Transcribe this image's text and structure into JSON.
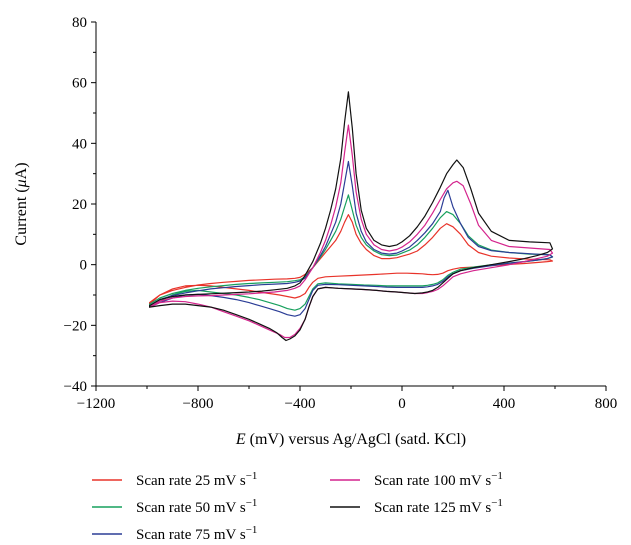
{
  "chart_data": {
    "type": "line",
    "title": "",
    "xlabel_italic": "E",
    "xlabel_rest": " (mV) versus Ag/AgCl (satd. KCl)",
    "ylabel_pre": "Current (",
    "ylabel_italic": "μ",
    "ylabel_post": "A)",
    "xlim": [
      -1200,
      800
    ],
    "ylim": [
      -40,
      80
    ],
    "x_ticks": [
      -1200,
      -800,
      -400,
      0,
      400,
      800
    ],
    "x_tick_labels": [
      "−1200",
      "−800",
      "−400",
      "0",
      "400",
      "800"
    ],
    "y_ticks": [
      -40,
      -20,
      0,
      20,
      40,
      60,
      80
    ],
    "y_tick_labels": [
      "−40",
      "−20",
      "0",
      "20",
      "40",
      "60",
      "80"
    ],
    "series": [
      {
        "name": "Scan rate 25 mV s−1",
        "color": "#e8332a",
        "x": [
          -990,
          -950,
          -900,
          -850,
          -800,
          -750,
          -700,
          -650,
          -600,
          -550,
          -500,
          -450,
          -420,
          -400,
          -380,
          -350,
          -320,
          -300,
          -280,
          -260,
          -240,
          -225,
          -210,
          -195,
          -180,
          -160,
          -140,
          -110,
          -80,
          -50,
          -20,
          0,
          30,
          60,
          90,
          120,
          150,
          175,
          200,
          230,
          260,
          300,
          350,
          420,
          500,
          580,
          590,
          570,
          530,
          480,
          420,
          350,
          280,
          230,
          200,
          180,
          160,
          140,
          120,
          100,
          80,
          50,
          20,
          -20,
          -60,
          -100,
          -150,
          -200,
          -250,
          -300,
          -330,
          -350,
          -365,
          -380,
          -400,
          -420,
          -450,
          -480,
          -520,
          -560,
          -600,
          -650,
          -700,
          -750,
          -800,
          -850,
          -900,
          -950,
          -990
        ],
        "y": [
          -12.5,
          -10,
          -8.5,
          -7.5,
          -6.7,
          -6.2,
          -5.8,
          -5.5,
          -5.2,
          -5,
          -4.8,
          -4.7,
          -4.5,
          -4.2,
          -3.2,
          -1,
          2,
          4,
          6,
          8,
          11,
          14,
          16.5,
          14,
          10,
          7,
          5,
          3,
          2,
          2,
          2.3,
          2.8,
          3.5,
          4.5,
          6.5,
          9,
          12,
          13.5,
          12.5,
          10,
          6.5,
          4,
          2.8,
          2.2,
          1.8,
          1.6,
          1.2,
          1,
          0.7,
          0.4,
          0.1,
          -0.3,
          -0.8,
          -1,
          -1.5,
          -2,
          -2.8,
          -3.2,
          -3.3,
          -3.2,
          -3,
          -2.9,
          -2.8,
          -2.8,
          -3,
          -3.2,
          -3.4,
          -3.6,
          -3.8,
          -4,
          -4.5,
          -5.8,
          -7.5,
          -9.5,
          -10.5,
          -11,
          -10.5,
          -10,
          -9.5,
          -9,
          -8.5,
          -8,
          -7.5,
          -7,
          -6.8,
          -7,
          -8,
          -10,
          -13
        ]
      },
      {
        "name": "Scan rate 50 mV s−1",
        "color": "#17a05d",
        "x": [
          -990,
          -950,
          -900,
          -850,
          -800,
          -750,
          -700,
          -650,
          -600,
          -550,
          -500,
          -450,
          -420,
          -400,
          -380,
          -350,
          -320,
          -300,
          -280,
          -260,
          -240,
          -225,
          -210,
          -195,
          -180,
          -160,
          -140,
          -110,
          -80,
          -50,
          -20,
          0,
          30,
          60,
          90,
          120,
          150,
          175,
          200,
          230,
          260,
          300,
          350,
          420,
          500,
          580,
          590,
          570,
          530,
          480,
          420,
          350,
          280,
          230,
          200,
          180,
          160,
          140,
          120,
          100,
          80,
          50,
          20,
          -20,
          -60,
          -100,
          -150,
          -200,
          -250,
          -300,
          -330,
          -350,
          -365,
          -380,
          -400,
          -420,
          -450,
          -480,
          -520,
          -560,
          -600,
          -650,
          -700,
          -750,
          -800,
          -850,
          -900,
          -950,
          -990
        ],
        "y": [
          -13,
          -11,
          -9.5,
          -8.5,
          -7.8,
          -7.3,
          -6.9,
          -6.5,
          -6.2,
          -6,
          -5.8,
          -5.6,
          -5.3,
          -5,
          -4,
          -1,
          2.5,
          5,
          8,
          11,
          15,
          19,
          23,
          18,
          13,
          9,
          6.5,
          4.5,
          3.3,
          3,
          3.2,
          3.8,
          4.8,
          6.5,
          9,
          12,
          15.5,
          17.5,
          16.5,
          13.5,
          9.5,
          6.5,
          4.8,
          4,
          3.5,
          3.3,
          2.5,
          2,
          1.5,
          1,
          0.5,
          0,
          -0.8,
          -1.5,
          -2.5,
          -3.5,
          -5,
          -6,
          -6.5,
          -6.8,
          -7,
          -7,
          -7,
          -7,
          -7,
          -6.8,
          -6.7,
          -6.5,
          -6.3,
          -6,
          -6.3,
          -8,
          -10.5,
          -13,
          -14.5,
          -15,
          -14.5,
          -13.5,
          -12.5,
          -11.5,
          -10.8,
          -10,
          -9.5,
          -9,
          -8.5,
          -8.8,
          -10,
          -12,
          -14
        ]
      },
      {
        "name": "Scan rate 75 mV s−1",
        "color": "#2b3d96",
        "x": [
          -990,
          -950,
          -900,
          -850,
          -800,
          -750,
          -700,
          -650,
          -600,
          -550,
          -500,
          -450,
          -420,
          -400,
          -380,
          -350,
          -320,
          -300,
          -280,
          -260,
          -240,
          -225,
          -210,
          -195,
          -180,
          -160,
          -140,
          -110,
          -80,
          -50,
          -20,
          0,
          30,
          60,
          90,
          120,
          150,
          165,
          180,
          200,
          230,
          260,
          300,
          350,
          420,
          500,
          580,
          590,
          570,
          530,
          480,
          420,
          350,
          280,
          230,
          200,
          180,
          160,
          140,
          120,
          100,
          80,
          50,
          20,
          -20,
          -60,
          -100,
          -150,
          -200,
          -250,
          -300,
          -330,
          -350,
          -365,
          -380,
          -400,
          -420,
          -450,
          -480,
          -520,
          -560,
          -600,
          -650,
          -700,
          -750,
          -800,
          -850,
          -900,
          -950,
          -990
        ],
        "y": [
          -13.5,
          -11.5,
          -10.2,
          -9.3,
          -8.6,
          -8,
          -7.6,
          -7.2,
          -6.9,
          -6.6,
          -6.4,
          -6.2,
          -5.8,
          -5.4,
          -4.4,
          -1,
          3,
          6,
          10,
          14,
          20,
          27,
          34,
          26,
          17,
          11,
          7.5,
          5,
          3.8,
          3.5,
          3.8,
          4.5,
          5.8,
          8,
          10.5,
          13.5,
          17.5,
          22,
          24.5,
          19,
          13.5,
          9,
          6,
          4.6,
          4,
          3.6,
          3.2,
          2.6,
          2,
          1.5,
          1,
          0.5,
          -0.3,
          -1.2,
          -2,
          -3,
          -4,
          -5.5,
          -6.5,
          -7,
          -7.3,
          -7.5,
          -7.5,
          -7.5,
          -7.5,
          -7.4,
          -7.2,
          -7,
          -6.8,
          -6.6,
          -6.5,
          -6.8,
          -8.5,
          -11.5,
          -14.5,
          -16.5,
          -17,
          -16.5,
          -15.5,
          -14.5,
          -13.5,
          -12.5,
          -11.5,
          -10.8,
          -10.2,
          -9.8,
          -10,
          -11,
          -12.5,
          -14
        ]
      },
      {
        "name": "Scan rate 100 mV s−1",
        "color": "#d4248d",
        "x": [
          -990,
          -950,
          -900,
          -850,
          -800,
          -750,
          -700,
          -650,
          -600,
          -550,
          -500,
          -450,
          -420,
          -400,
          -380,
          -350,
          -320,
          -300,
          -280,
          -260,
          -240,
          -225,
          -210,
          -195,
          -180,
          -160,
          -140,
          -110,
          -80,
          -50,
          -20,
          0,
          30,
          60,
          90,
          120,
          150,
          175,
          200,
          215,
          240,
          270,
          300,
          350,
          420,
          500,
          580,
          590,
          570,
          530,
          480,
          420,
          350,
          280,
          230,
          200,
          180,
          160,
          140,
          120,
          100,
          80,
          50,
          20,
          -20,
          -60,
          -100,
          -150,
          -200,
          -250,
          -300,
          -330,
          -350,
          -365,
          -380,
          -400,
          -420,
          -440,
          -460,
          -480,
          -520,
          -560,
          -600,
          -650,
          -700,
          -750,
          -800,
          -850,
          -900,
          -950,
          -990
        ],
        "y": [
          -14,
          -12,
          -11,
          -10.5,
          -10.3,
          -10.2,
          -10,
          -9.8,
          -9.6,
          -9.3,
          -9,
          -8.5,
          -7.8,
          -7,
          -5,
          -1,
          4,
          8,
          13,
          19,
          27,
          37,
          46,
          36,
          24,
          15,
          10,
          6.5,
          5,
          4.5,
          5,
          5.8,
          7.5,
          10,
          13,
          17,
          21.5,
          25,
          27,
          27.5,
          26,
          20,
          13,
          8,
          6,
          5.5,
          5,
          3.8,
          2.8,
          2,
          1,
          0,
          -1,
          -2,
          -3,
          -4,
          -5.5,
          -7,
          -8.2,
          -8.8,
          -9.2,
          -9.5,
          -9.5,
          -9.3,
          -9,
          -8.8,
          -8.5,
          -8.2,
          -8,
          -7.8,
          -7.5,
          -8,
          -10.5,
          -14,
          -18,
          -21,
          -23,
          -24,
          -24,
          -23,
          -21.5,
          -20,
          -18.5,
          -17,
          -15.5,
          -14,
          -13,
          -12.2,
          -12,
          -12.5,
          -14
        ]
      },
      {
        "name": "Scan rate 125 mV s−1",
        "color": "#111111",
        "x": [
          -990,
          -950,
          -900,
          -850,
          -800,
          -750,
          -700,
          -650,
          -600,
          -550,
          -500,
          -450,
          -420,
          -400,
          -380,
          -350,
          -320,
          -300,
          -280,
          -260,
          -240,
          -225,
          -210,
          -195,
          -180,
          -160,
          -140,
          -110,
          -80,
          -50,
          -20,
          0,
          30,
          60,
          90,
          120,
          150,
          175,
          200,
          215,
          240,
          270,
          300,
          350,
          420,
          500,
          580,
          590,
          570,
          530,
          480,
          420,
          350,
          280,
          230,
          200,
          180,
          160,
          140,
          120,
          100,
          80,
          50,
          20,
          -20,
          -60,
          -100,
          -150,
          -200,
          -250,
          -300,
          -330,
          -350,
          -365,
          -380,
          -400,
          -420,
          -440,
          -455,
          -470,
          -490,
          -520,
          -560,
          -600,
          -650,
          -700,
          -750,
          -800,
          -850,
          -900,
          -950,
          -990
        ],
        "y": [
          -13.5,
          -11.5,
          -10.5,
          -10,
          -9.8,
          -9.6,
          -9.4,
          -9.2,
          -9,
          -8.7,
          -8.3,
          -7.8,
          -7,
          -6,
          -3.5,
          1,
          7,
          12,
          18,
          25,
          35,
          47,
          57,
          45,
          30,
          18,
          12,
          8,
          6.5,
          6,
          6.5,
          7.5,
          9.5,
          12.5,
          16,
          20.5,
          25.5,
          30,
          33,
          34.5,
          32,
          25,
          17,
          11,
          8,
          7.5,
          7.2,
          5.2,
          4,
          3,
          2,
          1,
          0,
          -1,
          -2,
          -3,
          -4.5,
          -6,
          -7.5,
          -8.5,
          -9,
          -9.3,
          -9.5,
          -9.3,
          -9,
          -8.8,
          -8.5,
          -8.2,
          -8,
          -7.8,
          -7.5,
          -8,
          -10.5,
          -14,
          -18,
          -21.5,
          -23.5,
          -24.5,
          -25,
          -24,
          -22.5,
          -21,
          -19.5,
          -18,
          -16.5,
          -15,
          -14,
          -13.5,
          -13,
          -13,
          -13.5,
          -14
        ]
      }
    ],
    "legend": {
      "prefix": "Scan rate ",
      "unit": " mV s",
      "exponent": "−1",
      "entries": [
        {
          "series": 0,
          "rate": "25"
        },
        {
          "series": 1,
          "rate": "50"
        },
        {
          "series": 2,
          "rate": "75"
        },
        {
          "series": 3,
          "rate": "100"
        },
        {
          "series": 4,
          "rate": "125"
        }
      ],
      "placement": "bottom"
    },
    "grid": false
  }
}
